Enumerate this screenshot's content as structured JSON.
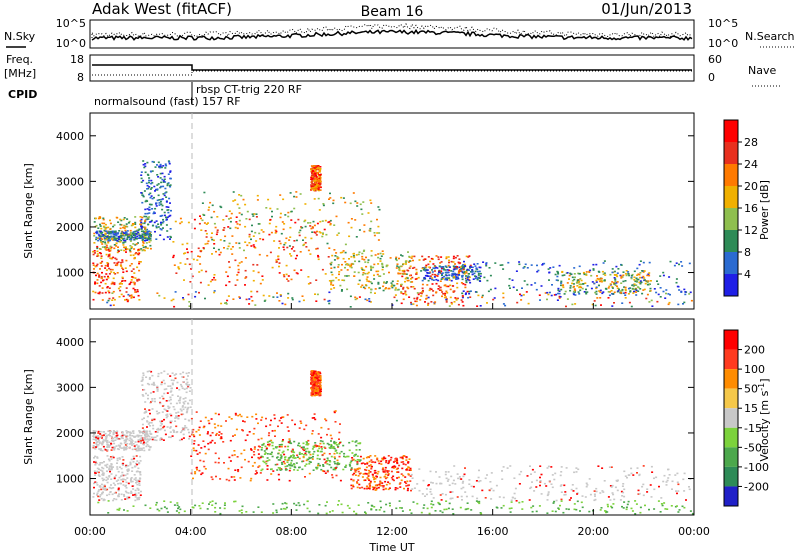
{
  "header": {
    "station": "Adak West (fitACF)",
    "beam": "Beam 16",
    "date": "01/Jun/2013"
  },
  "noise_panel": {
    "left_label": "N.Sky",
    "right_label": "N.Search",
    "left_ticks": [
      "10^5",
      "10^0"
    ],
    "right_ticks": [
      "10^5",
      "10^0"
    ]
  },
  "freq_panel": {
    "left_label_1": "Freq.",
    "left_label_2": "[MHz]",
    "left_ticks": [
      "18",
      "8"
    ],
    "right_label": "Nave",
    "right_ticks": [
      "60",
      "0"
    ]
  },
  "cpid": {
    "label": "CPID",
    "program_1": "normalsound (fast) 157 RF",
    "program_2": "rbsp CT-trig 220 RF"
  },
  "chart_data": [
    {
      "type": "heatmap",
      "quantity": "power",
      "ylabel": "Slant Range [km]",
      "xlabel": "",
      "y_ticks": [
        "1000",
        "2000",
        "3000",
        "4000"
      ],
      "ylim": [
        200,
        4500
      ],
      "colorbar_label": "Power [dB]",
      "colorbar_ticks": [
        "4",
        "8",
        "12",
        "16",
        "20",
        "24",
        "28"
      ],
      "colors": [
        "#1f1fe6",
        "#2b6bd1",
        "#2e8b57",
        "#8fbf4f",
        "#f0b000",
        "#ff7a00",
        "#e8301e",
        "#ff0000"
      ]
    },
    {
      "type": "heatmap",
      "quantity": "velocity",
      "ylabel": "Slant Range [km]",
      "xlabel": "Time UT",
      "x_ticks": [
        "00:00",
        "04:00",
        "08:00",
        "12:00",
        "16:00",
        "20:00",
        "00:00"
      ],
      "y_ticks": [
        "1000",
        "2000",
        "3000",
        "4000"
      ],
      "ylim": [
        200,
        4500
      ],
      "colorbar_label": "Velocity [m s^-1]",
      "colorbar_ticks": [
        "200",
        "100",
        "50",
        "15",
        "-15",
        "-50",
        "-100",
        "-200"
      ],
      "colors": [
        "#2020c8",
        "#2e8b57",
        "#4ca84c",
        "#7cd23c",
        "#c8c8c8",
        "#f5c84a",
        "#ff8c00",
        "#ff3b1f",
        "#ff0000"
      ]
    }
  ]
}
